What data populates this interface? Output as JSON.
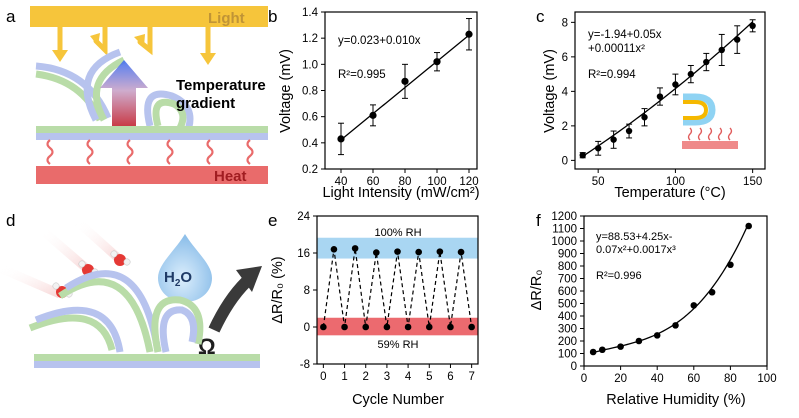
{
  "panels": {
    "a": {
      "label": "a",
      "top_label": "Light",
      "middle_label_line1": "Temperature",
      "middle_label_line2": "gradient",
      "bottom_label": "Heat",
      "colors": {
        "light": "#f6c53b",
        "heat": "#e96b6b",
        "arrow_top": "#3f6ff0",
        "arrow_bottom": "#c21e2a",
        "film_green": "#b9dca8",
        "film_blue": "#b7c3ee"
      }
    },
    "d": {
      "label": "d",
      "molecule_label_main": "H",
      "molecule_label_sub": "2",
      "molecule_label_end": "O",
      "omega_label": "Ω",
      "colors": {
        "drop": "#bcd8f3",
        "oxygen": "#e53935",
        "hydrogen": "#f2f2f2",
        "arrow": "#3a3a3a"
      }
    },
    "c_inset": {
      "colors": {
        "heater": "#ef8a8a",
        "film_outer": "#8fd3f3",
        "film_inner": "#f5b800",
        "heat_lines": "#e05b5b"
      }
    }
  },
  "chart_data": [
    {
      "panel": "b",
      "type": "scatter",
      "xlabel": "Light Intensity (mW/cm²)",
      "ylabel": "Voltage (mV)",
      "xlim": [
        30,
        125
      ],
      "ylim": [
        0.2,
        1.4
      ],
      "xticks": [
        40,
        60,
        80,
        100,
        120
      ],
      "yticks": [
        0.2,
        0.4,
        0.6,
        0.8,
        1.0,
        1.2,
        1.4
      ],
      "x": [
        40,
        60,
        80,
        100,
        120
      ],
      "y": [
        0.43,
        0.61,
        0.87,
        1.02,
        1.23
      ],
      "yerr": [
        0.12,
        0.08,
        0.13,
        0.07,
        0.12
      ],
      "fit": {
        "intercept": 0.023,
        "slope": 0.01
      },
      "annotations": [
        "y=0.023+0.010x",
        "R²=0.995"
      ],
      "color": "#000000"
    },
    {
      "panel": "c",
      "type": "scatter",
      "xlabel": "Temperature (°C)",
      "ylabel": "Voltage (mV)",
      "xlim": [
        35,
        158
      ],
      "ylim": [
        -0.5,
        8.6
      ],
      "xticks": [
        50,
        100,
        150
      ],
      "yticks": [
        0,
        2,
        4,
        6,
        8
      ],
      "x": [
        40,
        50,
        60,
        70,
        80,
        90,
        100,
        110,
        120,
        130,
        140,
        150
      ],
      "y": [
        0.3,
        0.7,
        1.2,
        1.7,
        2.5,
        3.7,
        4.4,
        5.0,
        5.7,
        6.4,
        7.0,
        7.8
      ],
      "yerr": [
        0.15,
        0.4,
        0.5,
        0.4,
        0.5,
        0.5,
        0.6,
        0.5,
        0.5,
        0.9,
        0.8,
        0.35
      ],
      "fit": {
        "a": -1.94,
        "b": 0.05,
        "c": 0.00011
      },
      "annotations": [
        "y=-1.94+0.05x",
        "+0.00011x²",
        "R²=0.994"
      ],
      "color": "#000000"
    },
    {
      "panel": "e",
      "type": "line",
      "xlabel": "Cycle Number",
      "ylabel": "ΔR/R₀ (%)",
      "xlim": [
        -0.3,
        7.3
      ],
      "ylim": [
        -8,
        24
      ],
      "xticks": [
        0,
        1,
        2,
        3,
        4,
        5,
        6,
        7
      ],
      "yticks": [
        -8,
        0,
        8,
        16,
        24
      ],
      "x": [
        0,
        0.5,
        1,
        1.5,
        2,
        2.5,
        3,
        3.5,
        4,
        4.5,
        5,
        5.5,
        6,
        6.5,
        7
      ],
      "y": [
        0,
        16.8,
        0,
        17.0,
        0,
        16.1,
        0,
        16.3,
        0,
        16.2,
        0,
        16.3,
        0,
        16.2,
        0
      ],
      "bands": [
        {
          "label": "100% RH",
          "y0": 14.8,
          "y1": 19.3,
          "color": "#a9d6f2"
        },
        {
          "label": "59% RH",
          "y0": -1.8,
          "y1": 2.0,
          "color": "#ec6a6f"
        }
      ],
      "color": "#000000"
    },
    {
      "panel": "f",
      "type": "scatter",
      "xlabel": "Relative Humidity (%)",
      "ylabel": "ΔR/R₀",
      "xlim": [
        0,
        100
      ],
      "ylim": [
        0,
        1200
      ],
      "xticks": [
        0,
        20,
        40,
        60,
        80,
        100
      ],
      "yticks": [
        0,
        100,
        200,
        300,
        400,
        500,
        600,
        700,
        800,
        900,
        1000,
        1100,
        1200
      ],
      "x": [
        5,
        10,
        20,
        30,
        40,
        50,
        60,
        70,
        80,
        90
      ],
      "y": [
        112,
        130,
        155,
        200,
        245,
        325,
        485,
        590,
        810,
        1120
      ],
      "fit": {
        "a": 88.53,
        "b": 4.25,
        "c": -0.07,
        "d": 0.0017
      },
      "annotations": [
        "y=88.53+4.25x-",
        "0.07x²+0.0017x³",
        "R²=0.996"
      ],
      "color": "#000000"
    }
  ]
}
